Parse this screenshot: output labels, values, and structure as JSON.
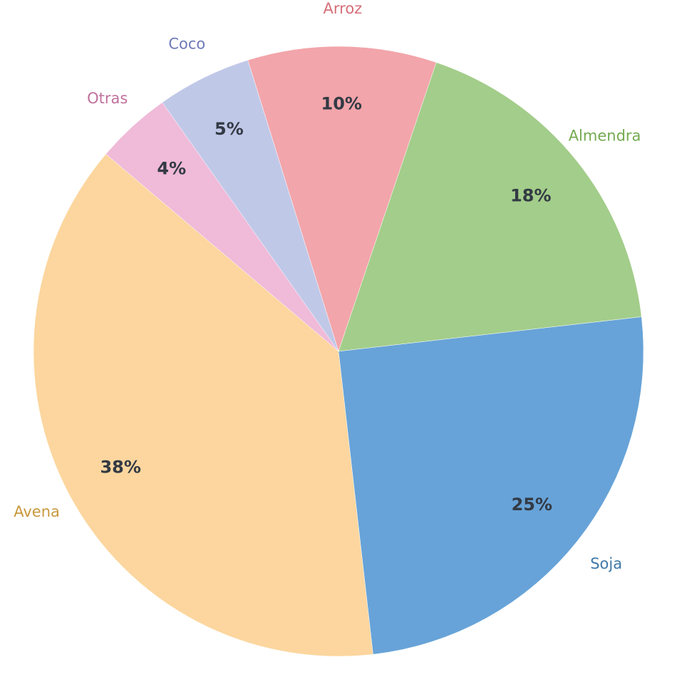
{
  "chart_data": {
    "type": "pie",
    "categories": [
      "Arroz",
      "Almendra",
      "Soja",
      "Avena",
      "Otras",
      "Coco"
    ],
    "values": [
      10,
      18,
      25,
      38,
      4,
      5
    ],
    "value_labels": [
      "10%",
      "18%",
      "25%",
      "38%",
      "4%",
      "5%"
    ],
    "colors": [
      "#f2a5aa",
      "#a3cd8a",
      "#67a3d8",
      "#fcd69e",
      "#f0bad9",
      "#c0c8e8"
    ],
    "label_colors": [
      "#d56e78",
      "#74aa50",
      "#3f78a8",
      "#c8983c",
      "#c0709c",
      "#7079b8"
    ]
  }
}
